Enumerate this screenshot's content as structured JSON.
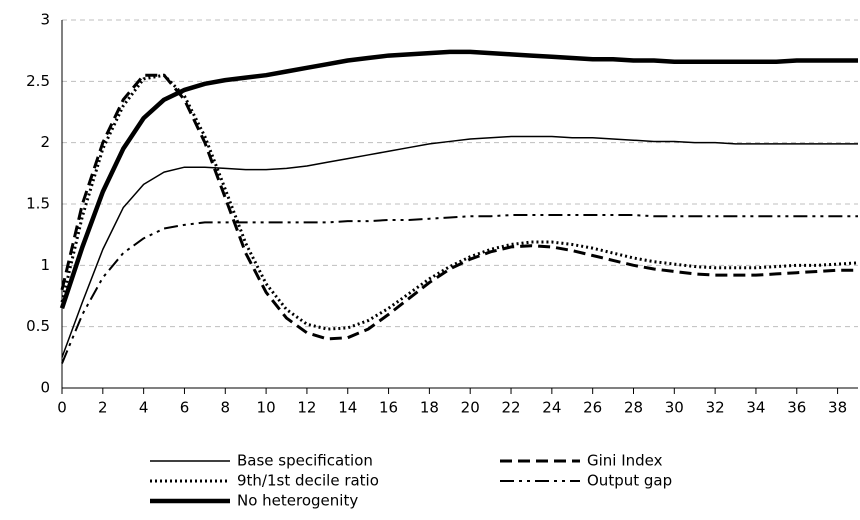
{
  "chart_data": {
    "type": "line",
    "x": [
      0,
      1,
      2,
      3,
      4,
      5,
      6,
      7,
      8,
      9,
      10,
      11,
      12,
      13,
      14,
      15,
      16,
      17,
      18,
      19,
      20,
      21,
      22,
      23,
      24,
      25,
      26,
      27,
      28,
      29,
      30,
      31,
      32,
      33,
      34,
      35,
      36,
      37,
      38,
      39
    ],
    "series": [
      {
        "name": "Base specification",
        "color": "#000000",
        "style": "solid",
        "width": 1.5,
        "values": [
          0.25,
          0.7,
          1.13,
          1.47,
          1.66,
          1.76,
          1.8,
          1.8,
          1.79,
          1.78,
          1.78,
          1.79,
          1.81,
          1.84,
          1.87,
          1.9,
          1.93,
          1.96,
          1.99,
          2.01,
          2.03,
          2.04,
          2.05,
          2.05,
          2.05,
          2.04,
          2.04,
          2.03,
          2.02,
          2.01,
          2.01,
          2.0,
          2.0,
          1.99,
          1.99,
          1.99,
          1.99,
          1.99,
          1.99,
          1.99
        ]
      },
      {
        "name": "Gini Index",
        "color": "#000000",
        "style": "dashed",
        "width": 3,
        "values": [
          0.8,
          1.5,
          2.0,
          2.35,
          2.55,
          2.55,
          2.35,
          2.0,
          1.55,
          1.1,
          0.78,
          0.57,
          0.45,
          0.4,
          0.41,
          0.48,
          0.6,
          0.73,
          0.86,
          0.97,
          1.05,
          1.11,
          1.15,
          1.16,
          1.15,
          1.12,
          1.08,
          1.04,
          1.0,
          0.97,
          0.95,
          0.93,
          0.92,
          0.92,
          0.92,
          0.93,
          0.94,
          0.95,
          0.96,
          0.96
        ]
      },
      {
        "name": "9th/1st decile ratio",
        "color": "#000000",
        "style": "dotted",
        "width": 3,
        "values": [
          0.7,
          1.4,
          1.95,
          2.3,
          2.52,
          2.55,
          2.38,
          2.05,
          1.62,
          1.18,
          0.85,
          0.64,
          0.52,
          0.48,
          0.49,
          0.55,
          0.65,
          0.77,
          0.89,
          0.99,
          1.07,
          1.13,
          1.17,
          1.19,
          1.19,
          1.17,
          1.14,
          1.1,
          1.06,
          1.03,
          1.01,
          0.99,
          0.98,
          0.98,
          0.98,
          0.99,
          1.0,
          1.0,
          1.01,
          1.02
        ]
      },
      {
        "name": "Output gap",
        "color": "#000000",
        "style": "dashdotdot",
        "width": 2,
        "values": [
          0.2,
          0.6,
          0.9,
          1.1,
          1.22,
          1.3,
          1.33,
          1.35,
          1.35,
          1.35,
          1.35,
          1.35,
          1.35,
          1.35,
          1.36,
          1.36,
          1.37,
          1.37,
          1.38,
          1.39,
          1.4,
          1.4,
          1.41,
          1.41,
          1.41,
          1.41,
          1.41,
          1.41,
          1.41,
          1.4,
          1.4,
          1.4,
          1.4,
          1.4,
          1.4,
          1.4,
          1.4,
          1.4,
          1.4,
          1.4
        ]
      },
      {
        "name": "No heterogenity",
        "color": "#000000",
        "style": "solid",
        "width": 4.5,
        "values": [
          0.65,
          1.15,
          1.6,
          1.95,
          2.2,
          2.35,
          2.43,
          2.48,
          2.51,
          2.53,
          2.55,
          2.58,
          2.61,
          2.64,
          2.67,
          2.69,
          2.71,
          2.72,
          2.73,
          2.74,
          2.74,
          2.73,
          2.72,
          2.71,
          2.7,
          2.69,
          2.68,
          2.68,
          2.67,
          2.67,
          2.66,
          2.66,
          2.66,
          2.66,
          2.66,
          2.66,
          2.67,
          2.67,
          2.67,
          2.67
        ]
      }
    ],
    "xlim": [
      0,
      39
    ],
    "xticks": [
      0,
      2,
      4,
      6,
      8,
      10,
      12,
      14,
      16,
      18,
      20,
      22,
      24,
      26,
      28,
      30,
      32,
      34,
      36,
      38
    ],
    "ylim": [
      0,
      3
    ],
    "yticks": [
      0,
      0.5,
      1,
      1.5,
      2,
      2.5,
      3
    ],
    "grid": true,
    "legend": "bottom"
  }
}
